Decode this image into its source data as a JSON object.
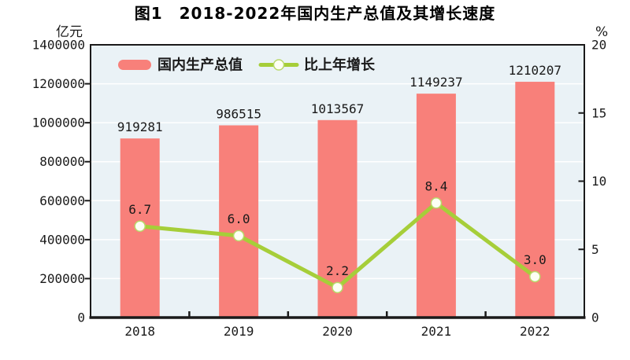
{
  "header": {
    "figure_label": "图1"
  },
  "chart_data": {
    "type": "bar",
    "combo": "bar+line",
    "title": "图1　2018-2022年国内生产总值及其增长速度",
    "categories": [
      "2018",
      "2019",
      "2020",
      "2021",
      "2022"
    ],
    "series": [
      {
        "name": "国内生产总值",
        "type": "bar",
        "axis": "left",
        "values": [
          919281,
          986515,
          1013567,
          1149237,
          1210207
        ],
        "labels": [
          "919281",
          "986515",
          "1013567",
          "1149237",
          "1210207"
        ],
        "color": "#f8807a"
      },
      {
        "name": "比上年增长",
        "type": "line",
        "axis": "right",
        "values": [
          6.7,
          6.0,
          2.2,
          8.4,
          3.0
        ],
        "labels": [
          "6.7",
          "6.0",
          "2.2",
          "8.4",
          "3.0"
        ],
        "color": "#a6ce39",
        "marker_fill": "#fdfff4",
        "marker_stroke": "#b9d96a"
      }
    ],
    "left_axis": {
      "title": "亿元",
      "min": 0,
      "max": 1400000,
      "step": 200000,
      "ticks": [
        "0",
        "200000",
        "400000",
        "600000",
        "800000",
        "1000000",
        "1200000",
        "1400000"
      ]
    },
    "right_axis": {
      "title": "%",
      "min": 0,
      "max": 20,
      "step": 5,
      "ticks": [
        "0",
        "5",
        "10",
        "15",
        "20"
      ]
    },
    "legend": {
      "position": "top-inside",
      "entries": [
        "国内生产总值",
        "比上年增长"
      ]
    },
    "style": {
      "plot_bg": "#eaf2f6",
      "grid_color": "#ffffff",
      "border_color": "#1a1a1a",
      "text_color": "#1a1a1a",
      "bar_label_color": "#1a1a1a",
      "line_label_color": "#1a1a1a"
    },
    "grid": true
  }
}
